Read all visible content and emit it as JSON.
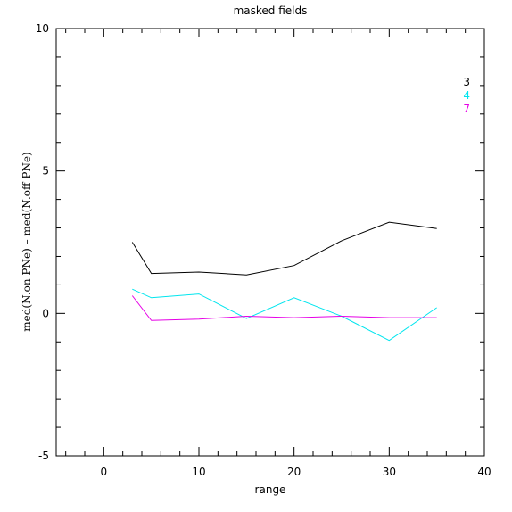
{
  "chart_data": {
    "type": "line",
    "title": "masked fields",
    "xlabel": "range",
    "ylabel": "med(N.on PNe) – med(N.off PNe)",
    "xlim": [
      -5,
      40
    ],
    "ylim": [
      -5,
      10
    ],
    "xticks": [
      0,
      10,
      20,
      30,
      40
    ],
    "yticks": [
      -5,
      0,
      5,
      10
    ],
    "series": [
      {
        "name": "3",
        "color": "#000000",
        "x": [
          3,
          5,
          10,
          15,
          20,
          25,
          30,
          35
        ],
        "y": [
          2.5,
          1.4,
          1.45,
          1.35,
          1.68,
          2.55,
          3.2,
          2.98
        ]
      },
      {
        "name": "4",
        "color": "#00e5ee",
        "x": [
          3,
          5,
          10,
          15,
          20,
          25,
          30,
          35
        ],
        "y": [
          0.85,
          0.55,
          0.68,
          -0.18,
          0.55,
          -0.1,
          -0.95,
          0.2
        ]
      },
      {
        "name": "7",
        "color": "#e600e6",
        "x": [
          3,
          5,
          10,
          15,
          20,
          25,
          30,
          35
        ],
        "y": [
          0.62,
          -0.25,
          -0.2,
          -0.1,
          -0.15,
          -0.1,
          -0.15,
          -0.15
        ]
      }
    ],
    "legend_position": "top-right",
    "grid": false
  }
}
